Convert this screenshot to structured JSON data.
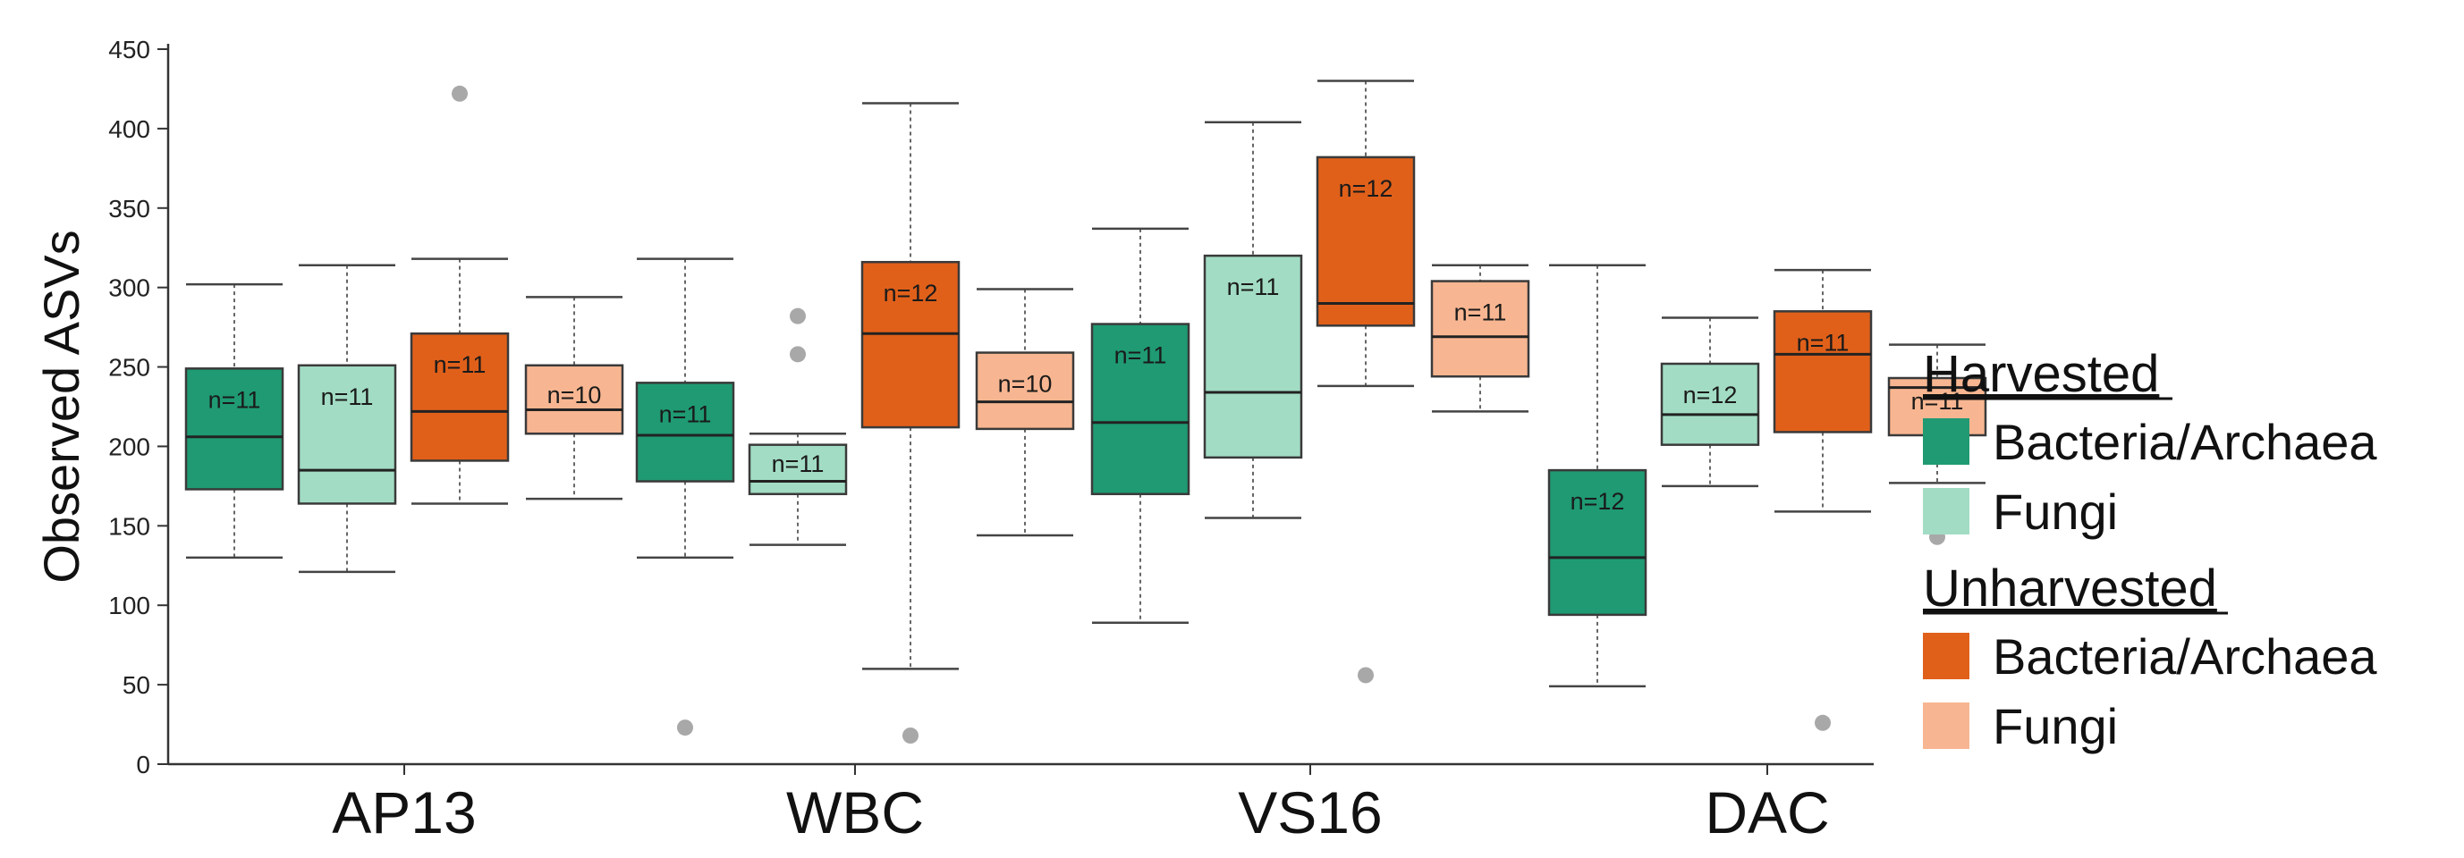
{
  "chart_data": {
    "type": "box",
    "title": "",
    "xlabel": "",
    "ylabel": "Observed ASVs",
    "ylim": [
      0,
      450
    ],
    "yticks": [
      0,
      50,
      100,
      150,
      200,
      250,
      300,
      350,
      400,
      450
    ],
    "grid": false,
    "legend_position": "right",
    "categories": [
      "AP13",
      "WBC",
      "VS16",
      "DAC"
    ],
    "groups": [
      {
        "name": "Harvested",
        "series": [
          {
            "key": "hb",
            "name": "Bacteria/Archaea",
            "color": "#1f9a72"
          },
          {
            "key": "hf",
            "name": "Fungi",
            "color": "#a2dcc4"
          }
        ]
      },
      {
        "name": "Unharvested",
        "series": [
          {
            "key": "ub",
            "name": "Bacteria/Archaea",
            "color": "#e0601a"
          },
          {
            "key": "uf",
            "name": "Fungi",
            "color": "#f7b691"
          }
        ]
      }
    ],
    "boxes": [
      {
        "category": "AP13",
        "series": "hb",
        "n_label": "n=11",
        "whisker_low": 130,
        "q1": 173,
        "median": 206,
        "q3": 249,
        "whisker_high": 302,
        "outliers": []
      },
      {
        "category": "AP13",
        "series": "hf",
        "n_label": "n=11",
        "whisker_low": 121,
        "q1": 164,
        "median": 185,
        "q3": 251,
        "whisker_high": 314,
        "outliers": []
      },
      {
        "category": "AP13",
        "series": "ub",
        "n_label": "n=11",
        "whisker_low": 164,
        "q1": 191,
        "median": 222,
        "q3": 271,
        "whisker_high": 318,
        "outliers": [
          422
        ]
      },
      {
        "category": "AP13",
        "series": "uf",
        "n_label": "n=10",
        "whisker_low": 167,
        "q1": 208,
        "median": 223,
        "q3": 251,
        "whisker_high": 294,
        "outliers": []
      },
      {
        "category": "WBC",
        "series": "hb",
        "n_label": "n=11",
        "whisker_low": 130,
        "q1": 178,
        "median": 207,
        "q3": 240,
        "whisker_high": 318,
        "outliers": [
          23
        ]
      },
      {
        "category": "WBC",
        "series": "hf",
        "n_label": "n=11",
        "whisker_low": 138,
        "q1": 170,
        "median": 178,
        "q3": 201,
        "whisker_high": 208,
        "outliers": [
          258,
          282
        ]
      },
      {
        "category": "WBC",
        "series": "ub",
        "n_label": "n=12",
        "whisker_low": 60,
        "q1": 212,
        "median": 271,
        "q3": 316,
        "whisker_high": 416,
        "outliers": [
          18
        ]
      },
      {
        "category": "WBC",
        "series": "uf",
        "n_label": "n=10",
        "whisker_low": 144,
        "q1": 211,
        "median": 228,
        "q3": 259,
        "whisker_high": 299,
        "outliers": []
      },
      {
        "category": "VS16",
        "series": "hb",
        "n_label": "n=11",
        "whisker_low": 89,
        "q1": 170,
        "median": 215,
        "q3": 277,
        "whisker_high": 337,
        "outliers": []
      },
      {
        "category": "VS16",
        "series": "hf",
        "n_label": "n=11",
        "whisker_low": 155,
        "q1": 193,
        "median": 234,
        "q3": 320,
        "whisker_high": 404,
        "outliers": []
      },
      {
        "category": "VS16",
        "series": "ub",
        "n_label": "n=12",
        "whisker_low": 238,
        "q1": 276,
        "median": 290,
        "q3": 382,
        "whisker_high": 430,
        "outliers": [
          56
        ]
      },
      {
        "category": "VS16",
        "series": "uf",
        "n_label": "n=11",
        "whisker_low": 222,
        "q1": 244,
        "median": 269,
        "q3": 304,
        "whisker_high": 314,
        "outliers": []
      },
      {
        "category": "DAC",
        "series": "hb",
        "n_label": "n=12",
        "whisker_low": 49,
        "q1": 94,
        "median": 130,
        "q3": 185,
        "whisker_high": 314,
        "outliers": []
      },
      {
        "category": "DAC",
        "series": "hf",
        "n_label": "n=12",
        "whisker_low": 175,
        "q1": 201,
        "median": 220,
        "q3": 252,
        "whisker_high": 281,
        "outliers": []
      },
      {
        "category": "DAC",
        "series": "ub",
        "n_label": "n=11",
        "whisker_low": 159,
        "q1": 209,
        "median": 258,
        "q3": 285,
        "whisker_high": 311,
        "outliers": [
          26
        ]
      },
      {
        "category": "DAC",
        "series": "uf",
        "n_label": "n=11",
        "whisker_low": 177,
        "q1": 207,
        "median": 237,
        "q3": 243,
        "whisker_high": 264,
        "outliers": [
          143
        ]
      }
    ]
  }
}
